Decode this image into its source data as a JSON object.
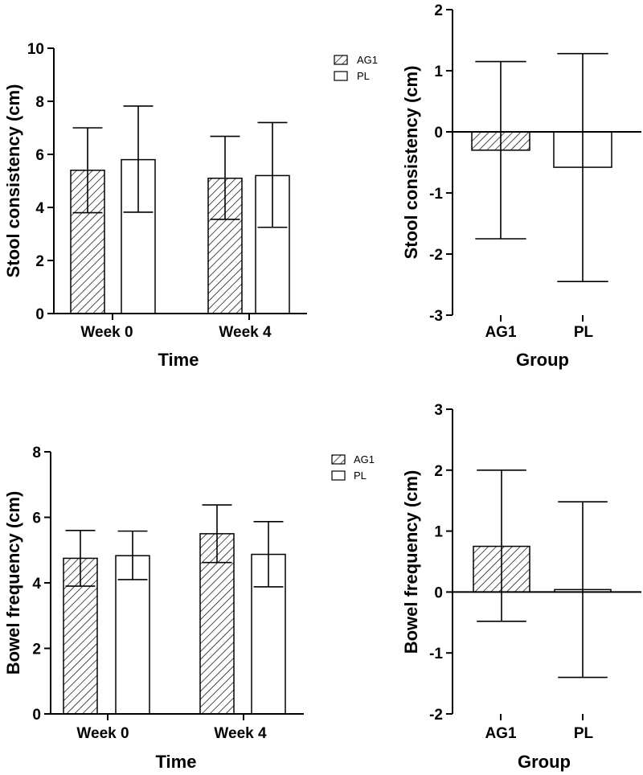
{
  "chart_data": [
    {
      "id": "stool-week",
      "type": "bar",
      "xlabel": "Time",
      "ylabel": "Stool consistency (cm)",
      "categories": [
        "Week 0",
        "Week 4"
      ],
      "ylim": [
        0,
        10
      ],
      "yticks": [
        0,
        2,
        4,
        6,
        8,
        10
      ],
      "series": [
        {
          "name": "AG1",
          "pattern": "hatch",
          "values": [
            5.4,
            5.1
          ],
          "err_low": [
            3.8,
            3.55
          ],
          "err_high": [
            7.0,
            6.68
          ]
        },
        {
          "name": "PL",
          "pattern": "open",
          "values": [
            5.8,
            5.2
          ],
          "err_low": [
            3.82,
            3.25
          ],
          "err_high": [
            7.82,
            7.2
          ]
        }
      ],
      "legend": [
        {
          "label": "AG1",
          "pattern": "hatch"
        },
        {
          "label": "PL",
          "pattern": "open"
        }
      ]
    },
    {
      "id": "stool-change",
      "type": "bar",
      "xlabel": "Group",
      "ylabel": "Stool consistency (cm)",
      "categories": [
        "AG1",
        "PL"
      ],
      "ylim": [
        -3,
        2
      ],
      "yticks": [
        -3,
        -2,
        -1,
        0,
        1,
        2
      ],
      "values": [
        -0.3,
        -0.58
      ],
      "err_low": [
        -1.75,
        -2.45
      ],
      "err_high": [
        1.15,
        1.28
      ],
      "patterns": [
        "hatch",
        "open"
      ]
    },
    {
      "id": "bowel-week",
      "type": "bar",
      "xlabel": "Time",
      "ylabel": "Bowel frequency (cm)",
      "categories": [
        "Week 0",
        "Week 4"
      ],
      "ylim": [
        0,
        8
      ],
      "yticks": [
        0,
        2,
        4,
        6,
        8
      ],
      "series": [
        {
          "name": "AG1",
          "pattern": "hatch",
          "values": [
            4.75,
            5.5
          ],
          "err_low": [
            3.9,
            4.62
          ],
          "err_high": [
            5.6,
            6.38
          ]
        },
        {
          "name": "PL",
          "pattern": "open",
          "values": [
            4.83,
            4.87
          ],
          "err_low": [
            4.1,
            3.88
          ],
          "err_high": [
            5.58,
            5.87
          ]
        }
      ],
      "legend": [
        {
          "label": "AG1",
          "pattern": "hatch"
        },
        {
          "label": "PL",
          "pattern": "open"
        }
      ]
    },
    {
      "id": "bowel-change",
      "type": "bar",
      "xlabel": "Group",
      "ylabel": "Bowel frequency (cm)",
      "categories": [
        "AG1",
        "PL"
      ],
      "ylim": [
        -2,
        3
      ],
      "yticks": [
        -2,
        -1,
        0,
        1,
        2,
        3
      ],
      "values": [
        0.75,
        0.04
      ],
      "err_low": [
        -0.48,
        -1.4
      ],
      "err_high": [
        2.0,
        1.48
      ],
      "patterns": [
        "hatch",
        "open"
      ]
    }
  ]
}
